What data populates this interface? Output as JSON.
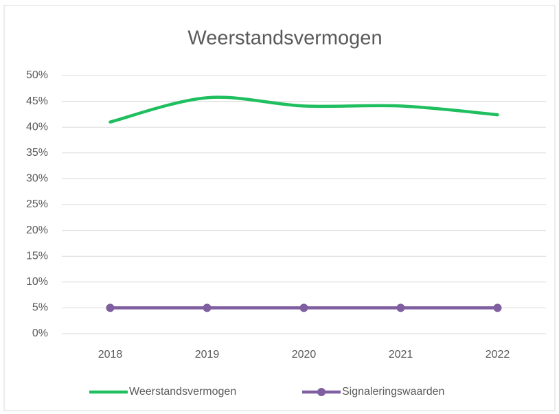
{
  "chart_data": {
    "type": "line",
    "title": "Weerstandsvermogen",
    "categories": [
      "2018",
      "2019",
      "2020",
      "2021",
      "2022"
    ],
    "series": [
      {
        "name": "Weerstandsvermogen",
        "color": "#1fbf5f",
        "values": [
          41,
          45.7,
          44.1,
          44.1,
          42.4
        ],
        "smooth": true,
        "markers": false
      },
      {
        "name": "Signaleringswaarden",
        "color": "#7f5fa0",
        "values": [
          5,
          5,
          5,
          5,
          5
        ],
        "smooth": false,
        "markers": true
      }
    ],
    "ylim": [
      0,
      50
    ],
    "yticks": [
      {
        "value": 0,
        "label": "0%"
      },
      {
        "value": 5,
        "label": "5%"
      },
      {
        "value": 10,
        "label": "10%"
      },
      {
        "value": 15,
        "label": "15%"
      },
      {
        "value": 20,
        "label": "20%"
      },
      {
        "value": 25,
        "label": "25%"
      },
      {
        "value": 30,
        "label": "30%"
      },
      {
        "value": 35,
        "label": "35%"
      },
      {
        "value": 40,
        "label": "40%"
      },
      {
        "value": 45,
        "label": "45%"
      },
      {
        "value": 50,
        "label": "50%"
      }
    ],
    "grid": true,
    "legend": "bottom"
  }
}
